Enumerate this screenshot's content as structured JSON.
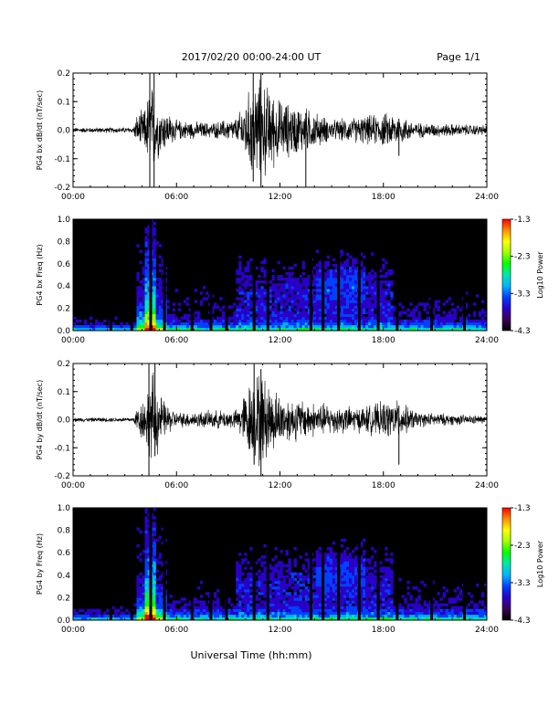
{
  "header": {
    "date_range": "2017/02/20  00:00-24:00 UT",
    "page": "Page 1/1"
  },
  "x_axis": {
    "title": "Universal Time (hh:mm)",
    "ticks": [
      "00:00",
      "06:00",
      "12:00",
      "18:00",
      "24:00"
    ]
  },
  "colorbar": {
    "label": "Log10 Power",
    "ticks": [
      "-1.3",
      "-2.3",
      "-3.3",
      "-4.3"
    ],
    "stops": [
      "#000000",
      "#3a0056",
      "#2a00c8",
      "#0040ff",
      "#00b4ff",
      "#00e8b0",
      "#00ff00",
      "#a0ff00",
      "#ffff00",
      "#ff9000",
      "#ff0000"
    ]
  },
  "chart_data": [
    {
      "type": "line",
      "ylabel": "PG4 bx dB/dt (nT/sec)",
      "xlim": [
        0,
        24
      ],
      "ylim": [
        -0.2,
        0.2
      ],
      "y_ticks": [
        "0.2",
        "0.1",
        "0.0",
        "-0.1",
        "-0.2"
      ],
      "y_tick_values": [
        0.2,
        0.1,
        0.0,
        -0.1,
        -0.2
      ],
      "activity_envelope": [
        {
          "x": 0,
          "amp": 0.01
        },
        {
          "x": 3.5,
          "amp": 0.012
        },
        {
          "x": 3.7,
          "amp": 0.06
        },
        {
          "x": 4.2,
          "amp": 0.09
        },
        {
          "x": 4.5,
          "amp": 0.2
        },
        {
          "x": 5.0,
          "amp": 0.1
        },
        {
          "x": 6.0,
          "amp": 0.04
        },
        {
          "x": 8.0,
          "amp": 0.03
        },
        {
          "x": 9.5,
          "amp": 0.05
        },
        {
          "x": 10.5,
          "amp": 0.2
        },
        {
          "x": 11.0,
          "amp": 0.2
        },
        {
          "x": 12.0,
          "amp": 0.12
        },
        {
          "x": 13.5,
          "amp": 0.09
        },
        {
          "x": 15.0,
          "amp": 0.04
        },
        {
          "x": 18.5,
          "amp": 0.07
        },
        {
          "x": 20.0,
          "amp": 0.03
        },
        {
          "x": 24,
          "amp": 0.02
        }
      ]
    },
    {
      "type": "heatmap",
      "ylabel": "PG4 bx Freq (Hz)",
      "xlim": [
        0,
        24
      ],
      "ylim": [
        0.0,
        1.0
      ],
      "y_ticks": [
        "1.0",
        "0.8",
        "0.6",
        "0.4",
        "0.2",
        "0.0"
      ],
      "y_tick_values": [
        1.0,
        0.8,
        0.6,
        0.4,
        0.2,
        0.0
      ],
      "zlim": [
        -4.3,
        -1.3
      ],
      "gaps_hours": [
        2.2,
        3.4,
        4.5,
        5.3,
        6.9,
        8.0,
        8.9,
        10.5,
        11.3,
        13.8,
        14.5,
        15.4,
        16.6,
        17.7,
        18.8,
        20.8,
        22.7
      ]
    },
    {
      "type": "line",
      "ylabel": "PG4 by dB/dt (nT/sec)",
      "xlim": [
        0,
        24
      ],
      "ylim": [
        -0.2,
        0.2
      ],
      "y_ticks": [
        "0.2",
        "0.1",
        "0.0",
        "-0.1",
        "-0.2"
      ],
      "y_tick_values": [
        0.2,
        0.1,
        0.0,
        -0.1,
        -0.2
      ],
      "activity_envelope": [
        {
          "x": 0,
          "amp": 0.008
        },
        {
          "x": 3.5,
          "amp": 0.01
        },
        {
          "x": 3.7,
          "amp": 0.05
        },
        {
          "x": 4.3,
          "amp": 0.12
        },
        {
          "x": 4.6,
          "amp": 0.2
        },
        {
          "x": 5.2,
          "amp": 0.08
        },
        {
          "x": 6.0,
          "amp": 0.03
        },
        {
          "x": 9.5,
          "amp": 0.04
        },
        {
          "x": 10.2,
          "amp": 0.15
        },
        {
          "x": 10.8,
          "amp": 0.2
        },
        {
          "x": 12.0,
          "amp": 0.1
        },
        {
          "x": 14.0,
          "amp": 0.07
        },
        {
          "x": 16.5,
          "amp": 0.05
        },
        {
          "x": 18.7,
          "amp": 0.08
        },
        {
          "x": 20.0,
          "amp": 0.03
        },
        {
          "x": 24,
          "amp": 0.015
        }
      ]
    },
    {
      "type": "heatmap",
      "ylabel": "PG4 by Freq (Hz)",
      "xlim": [
        0,
        24
      ],
      "ylim": [
        0.0,
        1.0
      ],
      "y_ticks": [
        "1.0",
        "0.8",
        "0.6",
        "0.4",
        "0.2",
        "0.0"
      ],
      "y_tick_values": [
        1.0,
        0.8,
        0.6,
        0.4,
        0.2,
        0.0
      ],
      "zlim": [
        -4.3,
        -1.3
      ],
      "gaps_hours": [
        2.2,
        3.4,
        4.5,
        5.3,
        6.9,
        8.0,
        8.9,
        10.5,
        11.3,
        13.8,
        14.5,
        15.4,
        16.6,
        17.7,
        18.8,
        20.8,
        22.7
      ]
    }
  ]
}
